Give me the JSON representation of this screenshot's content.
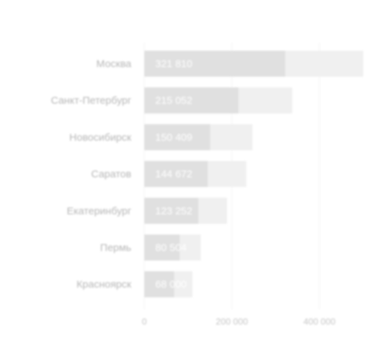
{
  "chart_data": {
    "type": "bar",
    "orientation": "horizontal",
    "categories": [
      "Москва",
      "Санкт-Петербург",
      "Новосибирск",
      "Саратов",
      "Екатеринбург",
      "Пермь",
      "Красноярск"
    ],
    "series": [
      {
        "values": [
          321810,
          215052,
          150409,
          144672,
          123252,
          80504,
          68000
        ],
        "value_labels": [
          "321 810",
          "215 052",
          "150 409",
          "144 672",
          "123 252",
          "80 504",
          "68 000"
        ]
      },
      {
        "values": [
          500000,
          338000,
          247000,
          233000,
          189000,
          129000,
          110000
        ]
      }
    ],
    "xticks": [
      {
        "value": 0,
        "label": "0"
      },
      {
        "value": 200000,
        "label": "200 000"
      },
      {
        "value": 400000,
        "label": "400 000"
      }
    ],
    "xlim": [
      0,
      500000
    ],
    "grid": true,
    "colors": {
      "primary_bar": "#e0e0e0",
      "background_bar": "#f0f0f0",
      "gridline": "#f2f2f2",
      "category_text": "#b7b7b7",
      "value_text": "#ffffff",
      "tick_text": "#c6c6c6"
    }
  }
}
